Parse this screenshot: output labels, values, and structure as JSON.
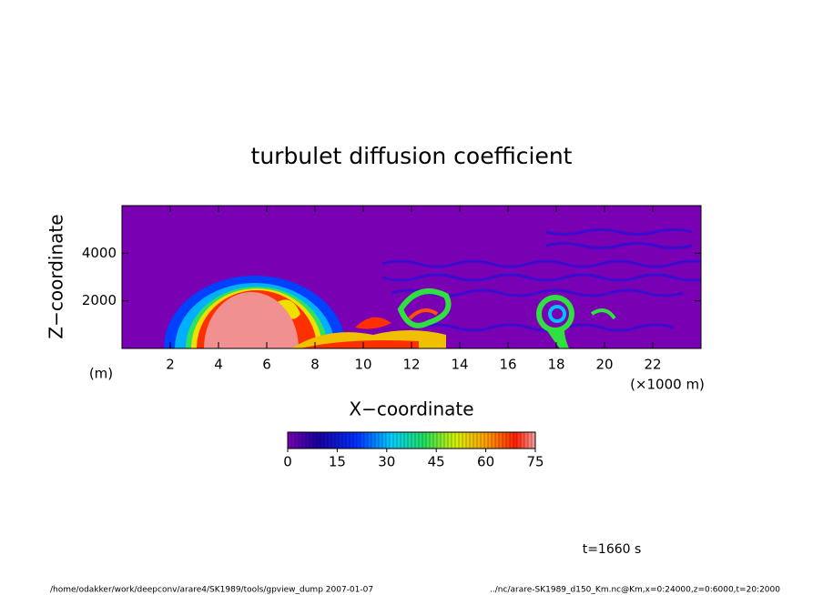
{
  "chart_data": {
    "type": "heatmap",
    "title": "turbulet diffusion coefficient",
    "xlabel": "X−coordinate",
    "ylabel": "Z−coordinate",
    "x_unit": "(×1000 m)",
    "y_unit": "(m)",
    "xlim": [
      0,
      24
    ],
    "xticks": [
      2,
      4,
      6,
      8,
      10,
      12,
      14,
      16,
      18,
      20,
      22
    ],
    "ylim": [
      0,
      6000
    ],
    "yticks": [
      2000,
      4000
    ],
    "colorbar": {
      "lim": [
        0,
        75
      ],
      "ticks": [
        0,
        15,
        30,
        45,
        60,
        75
      ]
    },
    "annotation": "t=1660 s",
    "footer_left": "/home/odakker/work/deepconv/arare4/SK1989/tools/gpview_dump  2007-01-07",
    "footer_right": "../nc/arare-SK1989_d150_Km.nc@Km,x=0:24000,z=0:6000,t=20:2000"
  }
}
